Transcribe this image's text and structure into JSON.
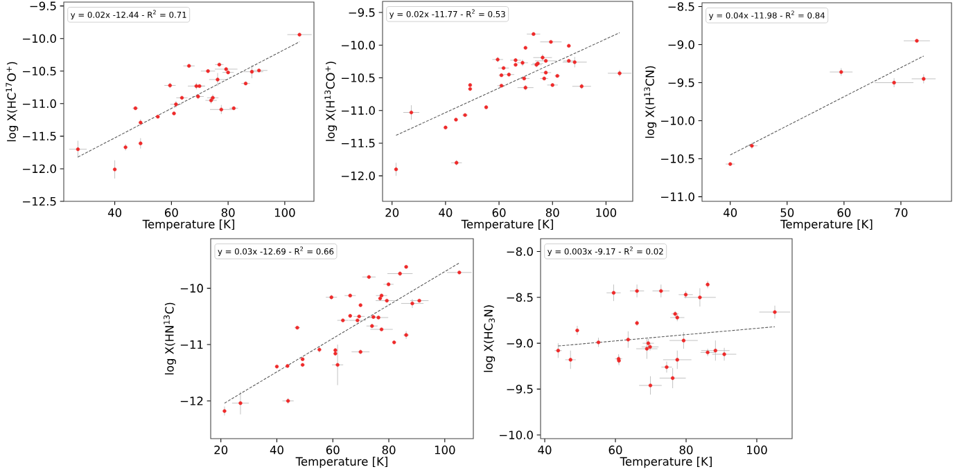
{
  "chart_data": [
    {
      "type": "scatter",
      "xlabel": "Temperature [K]",
      "ylabel": "log X(HC$^{17}$O$^{+}$)",
      "xlim": [
        22.0,
        110.3
      ],
      "ylim": [
        -12.5,
        -9.44
      ],
      "xticks": [
        40,
        60,
        80,
        100
      ],
      "yticks": [
        {
          "value": -12.5,
          "label": "−12.5"
        },
        {
          "value": -12.0,
          "label": "−12.0"
        },
        {
          "value": -11.5,
          "label": "−11.5"
        },
        {
          "value": -11.0,
          "label": "−11.0"
        },
        {
          "value": -10.5,
          "label": "−10.5"
        },
        {
          "value": -10.0,
          "label": "−10.0"
        },
        {
          "value": -9.5,
          "label": "−9.5"
        }
      ],
      "annotations": [
        "y = 0.02x -12.44 - R$^{2}$ = 0.71"
      ],
      "series": [
        {
          "color": "#ee2a2a",
          "marker": "circle",
          "x": [
            27.0,
            40.0,
            43.8,
            47.3,
            49.1,
            49.1,
            55.2,
            59.5,
            60.9,
            61.6,
            63.7,
            66.2,
            68.8,
            69.9,
            69.4,
            72.9,
            74.0,
            74.6,
            76.3,
            76.9,
            77.6,
            79.3,
            80.0,
            82.0,
            86.2,
            88.4,
            90.9,
            105.2
          ],
          "values": [
            -11.7,
            -12.01,
            -11.67,
            -11.07,
            -11.29,
            -11.61,
            -11.2,
            -10.72,
            -11.15,
            -11.01,
            -10.91,
            -10.42,
            -10.73,
            -10.73,
            -10.89,
            -10.5,
            -10.95,
            -10.91,
            -10.63,
            -10.4,
            -11.09,
            -10.47,
            -10.52,
            -11.07,
            -10.69,
            -10.51,
            -10.49,
            -9.94
          ],
          "xerrors": [
            3.1,
            null,
            null,
            1.0,
            null,
            null,
            null,
            2.0,
            null,
            2.0,
            2.0,
            2.0,
            3.0,
            2.0,
            2.0,
            2.5,
            2.0,
            2.0,
            3.0,
            1.5,
            4.0,
            4.0,
            2.0,
            1.5,
            1.5,
            4.0,
            3.0,
            4.3
          ],
          "errors": [
            0.13,
            0.14,
            0.05,
            null,
            0.05,
            0.08,
            null,
            0.04,
            null,
            0.05,
            null,
            null,
            0.05,
            null,
            0.04,
            null,
            0.05,
            0.05,
            0.1,
            null,
            0.07,
            null,
            null,
            null,
            null,
            0.1,
            null,
            null
          ]
        },
        {
          "type": "line",
          "color": "#555555",
          "marker": "none",
          "line_style": "dashed",
          "x": [
            27.0,
            105.2
          ],
          "values": [
            -11.82,
            -10.05
          ]
        }
      ]
    },
    {
      "type": "scatter",
      "xlabel": "Temperature [K]",
      "ylabel": "log X(H$^{13}$CO$^{+}$)",
      "xlim": [
        16.45,
        110.0
      ],
      "ylim": [
        -12.39,
        -9.33
      ],
      "xticks": [
        20,
        40,
        60,
        80,
        100
      ],
      "yticks": [
        {
          "value": -12.0,
          "label": "−12.0"
        },
        {
          "value": -11.5,
          "label": "−11.5"
        },
        {
          "value": -11.0,
          "label": "−11.0"
        },
        {
          "value": -10.5,
          "label": "−10.5"
        },
        {
          "value": -10.0,
          "label": "−10.0"
        },
        {
          "value": -9.5,
          "label": "−9.5"
        }
      ],
      "annotations": [
        "y = 0.02x -11.77 - R$^{2}$ = 0.53"
      ],
      "series": [
        {
          "color": "#ee2a2a",
          "marker": "circle",
          "x": [
            21.5,
            27.2,
            40.0,
            43.9,
            44.1,
            47.3,
            49.2,
            49.2,
            55.2,
            59.5,
            60.9,
            60.9,
            61.7,
            63.7,
            66.2,
            66.2,
            68.8,
            69.4,
            69.9,
            69.9,
            72.9,
            74.0,
            74.5,
            76.3,
            76.9,
            77.5,
            77.5,
            79.4,
            80.0,
            81.8,
            86.1,
            86.1,
            88.3,
            90.9,
            105.1
          ],
          "values": [
            -11.9,
            -11.03,
            -11.26,
            -11.14,
            -11.8,
            -11.07,
            -10.61,
            -10.67,
            -10.95,
            -10.22,
            -10.46,
            -10.62,
            -10.35,
            -10.45,
            -10.23,
            -10.3,
            -10.27,
            -10.51,
            -10.04,
            -10.65,
            -9.83,
            -10.3,
            -10.28,
            -10.19,
            -10.51,
            -10.24,
            -10.42,
            -9.95,
            -10.61,
            -10.47,
            -10.01,
            -10.24,
            -10.26,
            -10.63,
            -10.43
          ],
          "xerrors": [
            null,
            3.0,
            null,
            null,
            2.0,
            1.0,
            null,
            null,
            null,
            2.0,
            1.0,
            1.5,
            2.0,
            2.0,
            2.0,
            null,
            2.0,
            2.0,
            null,
            3.0,
            2.5,
            2.0,
            2.0,
            3.5,
            1.5,
            4.0,
            2.0,
            4.0,
            2.0,
            1.0,
            null,
            2.0,
            4.5,
            3.5,
            4.4
          ],
          "errors": [
            0.1,
            0.11,
            null,
            null,
            0.04,
            null,
            null,
            null,
            null,
            0.04,
            null,
            null,
            null,
            null,
            null,
            null,
            0.05,
            null,
            null,
            0.04,
            null,
            0.04,
            null,
            0.05,
            null,
            null,
            null,
            null,
            null,
            null,
            null,
            null,
            0.08,
            0.04,
            0.05
          ]
        },
        {
          "type": "line",
          "color": "#555555",
          "marker": "none",
          "line_style": "dashed",
          "x": [
            21.5,
            105.1
          ],
          "values": [
            -11.38,
            -9.81
          ]
        }
      ]
    },
    {
      "type": "scatter",
      "xlabel": "Temperature [K]",
      "ylabel": "log X(H$^{13}$CN)",
      "xlim": [
        35.04,
        78.9
      ],
      "ylim": [
        -11.06,
        -8.45
      ],
      "xticks": [
        40,
        50,
        60,
        70
      ],
      "yticks": [
        {
          "value": -11.0,
          "label": "−11.0"
        },
        {
          "value": -10.5,
          "label": "−10.5"
        },
        {
          "value": -10.0,
          "label": "−10.0"
        },
        {
          "value": -9.5,
          "label": "−9.5"
        },
        {
          "value": -9.0,
          "label": "−9.0"
        },
        {
          "value": -8.5,
          "label": "−8.5"
        }
      ],
      "annotations": [
        "y = 0.04x -11.98 - R$^{2}$ = 0.84"
      ],
      "series": [
        {
          "color": "#ee2a2a",
          "marker": "circle",
          "x": [
            40.0,
            43.8,
            59.5,
            68.8,
            72.8,
            74.0
          ],
          "values": [
            -10.57,
            -10.33,
            -9.36,
            -9.5,
            -8.95,
            -9.45
          ],
          "xerrors": [
            0.8,
            1.0,
            2.0,
            3.4,
            2.3,
            2.1
          ],
          "errors": [
            null,
            0.04,
            0.05,
            0.06,
            null,
            0.06
          ]
        },
        {
          "type": "line",
          "color": "#555555",
          "marker": "none",
          "line_style": "dashed",
          "x": [
            40.0,
            74.0
          ],
          "values": [
            -10.45,
            -9.15
          ]
        }
      ]
    },
    {
      "type": "scatter",
      "xlabel": "Temperature [K]",
      "ylabel": "log X(HN$^{13}$C)",
      "xlim": [
        16.36,
        110.2
      ],
      "ylim": [
        -12.67,
        -9.12
      ],
      "xticks": [
        20,
        40,
        60,
        80,
        100
      ],
      "yticks": [
        {
          "value": -12,
          "label": "−12"
        },
        {
          "value": -11,
          "label": "−11"
        },
        {
          "value": -10,
          "label": "−10"
        }
      ],
      "annotations": [
        "y = 0.03x -12.69 - R$^{2}$ = 0.66"
      ],
      "series": [
        {
          "color": "#ee2a2a",
          "marker": "circle",
          "x": [
            21.3,
            27.0,
            40.0,
            43.8,
            44.0,
            47.3,
            49.2,
            49.2,
            55.2,
            59.5,
            60.9,
            60.9,
            61.7,
            63.6,
            66.2,
            66.2,
            68.8,
            69.4,
            69.9,
            69.9,
            72.9,
            74.0,
            74.5,
            76.3,
            76.9,
            77.4,
            77.4,
            79.3,
            79.9,
            81.9,
            84.0,
            86.2,
            86.2,
            88.4,
            90.9,
            105.2
          ],
          "values": [
            -12.18,
            -12.04,
            -11.39,
            -11.38,
            -12.0,
            -10.7,
            -11.26,
            -11.36,
            -11.09,
            -10.16,
            -11.1,
            -11.16,
            -11.36,
            -10.57,
            -10.13,
            -10.49,
            -10.57,
            -10.5,
            -10.3,
            -11.13,
            -9.8,
            -10.67,
            -10.51,
            -10.52,
            -10.18,
            -10.13,
            -10.73,
            -10.22,
            -9.93,
            -10.96,
            -9.74,
            -9.62,
            -10.83,
            -10.27,
            -10.22,
            -9.72
          ],
          "xerrors": [
            null,
            3.0,
            null,
            null,
            2.0,
            1.0,
            null,
            null,
            null,
            2.0,
            null,
            null,
            2.0,
            2.0,
            2.0,
            null,
            3.0,
            2.0,
            null,
            3.2,
            2.4,
            2.0,
            2.0,
            3.5,
            null,
            2.0,
            4.0,
            4.0,
            1.8,
            null,
            4.5,
            null,
            1.0,
            4.0,
            3.3,
            4.4
          ],
          "errors": [
            0.08,
            0.2,
            null,
            null,
            0.05,
            null,
            null,
            null,
            0.05,
            0.04,
            null,
            null,
            0.36,
            null,
            null,
            null,
            null,
            null,
            null,
            0.04,
            null,
            0.04,
            null,
            null,
            null,
            null,
            null,
            null,
            null,
            null,
            0.04,
            null,
            0.07,
            0.08,
            null,
            null
          ]
        },
        {
          "type": "line",
          "color": "#555555",
          "marker": "none",
          "line_style": "dashed",
          "x": [
            21.3,
            105.2
          ],
          "values": [
            -12.04,
            -9.55
          ]
        }
      ]
    },
    {
      "type": "scatter",
      "xlabel": "Temperature [K]",
      "ylabel": "log X(HC$_{3}$N)",
      "xlim": [
        38.82,
        110.0
      ],
      "ylim": [
        -10.04,
        -7.86
      ],
      "xticks": [
        40,
        60,
        80,
        100
      ],
      "yticks": [
        {
          "value": -10.0,
          "label": "−10.0"
        },
        {
          "value": -9.5,
          "label": "−9.5"
        },
        {
          "value": -9.0,
          "label": "−9.0"
        },
        {
          "value": -8.5,
          "label": "−8.5"
        },
        {
          "value": -8.0,
          "label": "−8.0"
        }
      ],
      "annotations": [
        "y = 0.003x -9.17 - R$^{2}$ = 0.02"
      ],
      "series": [
        {
          "color": "#ee2a2a",
          "marker": "circle",
          "x": [
            43.8,
            47.3,
            49.2,
            55.2,
            59.5,
            60.9,
            61.0,
            63.6,
            66.1,
            66.1,
            68.9,
            69.3,
            69.8,
            69.9,
            72.9,
            74.5,
            76.2,
            76.9,
            77.5,
            77.5,
            79.3,
            79.9,
            83.9,
            86.1,
            86.1,
            88.3,
            90.8,
            105.1
          ],
          "values": [
            -9.08,
            -9.18,
            -8.86,
            -8.99,
            -8.45,
            -9.17,
            -9.19,
            -8.96,
            -8.43,
            -8.78,
            -9.06,
            -9.0,
            -9.04,
            -9.46,
            -8.43,
            -9.26,
            -9.38,
            -8.68,
            -8.72,
            -9.18,
            -8.97,
            -8.47,
            -8.5,
            -8.36,
            -9.1,
            -9.08,
            -9.12,
            -8.66
          ],
          "xerrors": [
            1.0,
            1.5,
            null,
            null,
            2.0,
            1.0,
            null,
            null,
            2.0,
            null,
            3.0,
            1.6,
            2.4,
            3.2,
            2.4,
            1.5,
            3.7,
            1.0,
            2.0,
            4.0,
            4.0,
            2.0,
            4.5,
            null,
            2.0,
            4.0,
            3.4,
            4.4
          ],
          "errors": [
            0.08,
            0.1,
            0.05,
            0.05,
            0.09,
            0.05,
            0.05,
            0.09,
            0.07,
            0.03,
            0.11,
            0.05,
            0.04,
            0.1,
            0.07,
            0.06,
            0.11,
            0.03,
            0.04,
            0.1,
            0.09,
            0.04,
            0.1,
            0.04,
            0.04,
            0.11,
            0.07,
            0.07
          ]
        },
        {
          "type": "line",
          "color": "#555555",
          "marker": "none",
          "line_style": "dashed",
          "x": [
            43.8,
            105.1
          ],
          "values": [
            -9.03,
            -8.82
          ]
        }
      ]
    }
  ]
}
